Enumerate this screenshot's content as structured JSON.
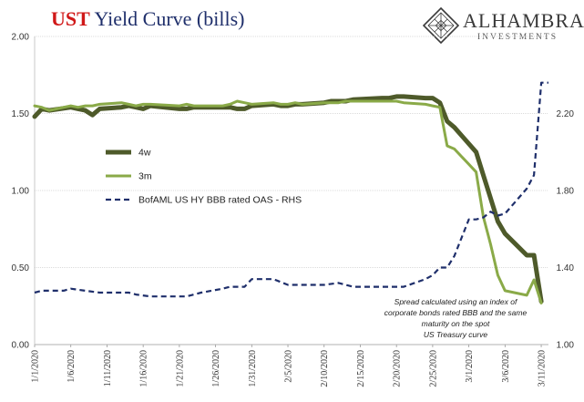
{
  "header": {
    "title_accent": "UST",
    "title_rest": " Yield Curve (bills)"
  },
  "logo": {
    "brand": "ALHAMBRA",
    "sub": "INVESTMENTS"
  },
  "chart_data": {
    "type": "line",
    "title": "UST Yield Curve (bills)",
    "x": [
      "2020-01-01",
      "2020-01-06",
      "2020-01-11",
      "2020-01-16",
      "2020-01-21",
      "2020-01-26",
      "2020-01-31",
      "2020-02-05",
      "2020-02-10",
      "2020-02-15",
      "2020-02-20",
      "2020-02-25",
      "2020-03-01",
      "2020-03-06",
      "2020-03-11"
    ],
    "xtick_labels": [
      "1/1/2020",
      "1/6/2020",
      "1/11/2020",
      "1/16/2020",
      "1/21/2020",
      "1/26/2020",
      "1/31/2020",
      "2/5/2020",
      "2/10/2020",
      "2/15/2020",
      "2/20/2020",
      "2/25/2020",
      "3/1/2020",
      "3/6/2020",
      "3/11/2020"
    ],
    "x_range": [
      "2020-01-01",
      "2020-03-12"
    ],
    "y_left": {
      "range": [
        0,
        2.0
      ],
      "ticks": [
        "0.00",
        "0.50",
        "1.00",
        "1.50",
        "2.00"
      ]
    },
    "y_right": {
      "range": [
        1.0,
        2.6
      ],
      "ticks": [
        "1.00",
        "1.40",
        "1.80",
        "2.20"
      ]
    },
    "grid": true,
    "legend_placement": "center-left",
    "series": [
      {
        "name": "4w",
        "axis": "left",
        "color": "#4e5a2a",
        "dash": "solid",
        "x": [
          "2019-12-31",
          "2020-01-02",
          "2020-01-03",
          "2020-01-06",
          "2020-01-07",
          "2020-01-08",
          "2020-01-09",
          "2020-01-10",
          "2020-01-13",
          "2020-01-14",
          "2020-01-15",
          "2020-01-16",
          "2020-01-17",
          "2020-01-21",
          "2020-01-22",
          "2020-01-23",
          "2020-01-24",
          "2020-01-27",
          "2020-01-28",
          "2020-01-29",
          "2020-01-30",
          "2020-01-31",
          "2020-02-03",
          "2020-02-04",
          "2020-02-05",
          "2020-02-06",
          "2020-02-07",
          "2020-02-10",
          "2020-02-11",
          "2020-02-12",
          "2020-02-13",
          "2020-02-14",
          "2020-02-18",
          "2020-02-19",
          "2020-02-20",
          "2020-02-21",
          "2020-02-24",
          "2020-02-25",
          "2020-02-26",
          "2020-02-27",
          "2020-02-28",
          "2020-03-02",
          "2020-03-03",
          "2020-03-04",
          "2020-03-05",
          "2020-03-06",
          "2020-03-09",
          "2020-03-10",
          "2020-03-11"
        ],
        "y": [
          1.48,
          1.53,
          1.52,
          1.54,
          1.53,
          1.52,
          1.49,
          1.53,
          1.54,
          1.55,
          1.54,
          1.53,
          1.55,
          1.53,
          1.53,
          1.54,
          1.54,
          1.54,
          1.54,
          1.53,
          1.53,
          1.55,
          1.56,
          1.55,
          1.55,
          1.56,
          1.56,
          1.57,
          1.58,
          1.58,
          1.58,
          1.59,
          1.6,
          1.6,
          1.61,
          1.61,
          1.6,
          1.6,
          1.57,
          1.45,
          1.41,
          1.25,
          1.1,
          0.95,
          0.8,
          0.72,
          0.58,
          0.58,
          0.28
        ]
      },
      {
        "name": "3m",
        "axis": "left",
        "color": "#8aaa48",
        "dash": "solid",
        "x": [
          "2019-12-31",
          "2020-01-02",
          "2020-01-03",
          "2020-01-06",
          "2020-01-07",
          "2020-01-08",
          "2020-01-09",
          "2020-01-10",
          "2020-01-13",
          "2020-01-14",
          "2020-01-15",
          "2020-01-16",
          "2020-01-17",
          "2020-01-21",
          "2020-01-22",
          "2020-01-23",
          "2020-01-24",
          "2020-01-27",
          "2020-01-28",
          "2020-01-29",
          "2020-01-30",
          "2020-01-31",
          "2020-02-03",
          "2020-02-04",
          "2020-02-05",
          "2020-02-06",
          "2020-02-07",
          "2020-02-10",
          "2020-02-11",
          "2020-02-12",
          "2020-02-13",
          "2020-02-14",
          "2020-02-18",
          "2020-02-19",
          "2020-02-20",
          "2020-02-21",
          "2020-02-24",
          "2020-02-25",
          "2020-02-26",
          "2020-02-27",
          "2020-02-28",
          "2020-03-02",
          "2020-03-03",
          "2020-03-04",
          "2020-03-05",
          "2020-03-06",
          "2020-03-09",
          "2020-03-10",
          "2020-03-11"
        ],
        "y": [
          1.55,
          1.54,
          1.52,
          1.55,
          1.54,
          1.55,
          1.55,
          1.56,
          1.57,
          1.56,
          1.55,
          1.56,
          1.56,
          1.55,
          1.56,
          1.55,
          1.55,
          1.55,
          1.56,
          1.58,
          1.57,
          1.56,
          1.57,
          1.56,
          1.56,
          1.57,
          1.56,
          1.57,
          1.57,
          1.57,
          1.58,
          1.58,
          1.58,
          1.58,
          1.58,
          1.57,
          1.56,
          1.55,
          1.54,
          1.29,
          1.27,
          1.12,
          0.83,
          0.65,
          0.45,
          0.35,
          0.32,
          0.42,
          0.27
        ]
      },
      {
        "name": "BofAML US HY BBB rated OAS - RHS",
        "axis": "right",
        "color": "#1f2f6b",
        "dash": "dashed",
        "x": [
          "2020-01-01",
          "2020-01-02",
          "2020-01-03",
          "2020-01-05",
          "2020-01-06",
          "2020-01-08",
          "2020-01-10",
          "2020-01-13",
          "2020-01-14",
          "2020-01-15",
          "2020-01-17",
          "2020-01-20",
          "2020-01-22",
          "2020-01-24",
          "2020-01-27",
          "2020-01-28",
          "2020-01-30",
          "2020-01-31",
          "2020-02-01",
          "2020-02-03",
          "2020-02-05",
          "2020-02-07",
          "2020-02-10",
          "2020-02-12",
          "2020-02-14",
          "2020-02-19",
          "2020-02-21",
          "2020-02-24",
          "2020-02-25",
          "2020-02-26",
          "2020-02-27",
          "2020-02-28",
          "2020-03-01",
          "2020-03-02",
          "2020-03-03",
          "2020-03-04",
          "2020-03-05",
          "2020-03-06",
          "2020-03-09",
          "2020-03-10",
          "2020-03-11",
          "2020-03-12"
        ],
        "y": [
          1.27,
          1.28,
          1.28,
          1.28,
          1.29,
          1.28,
          1.27,
          1.27,
          1.27,
          1.26,
          1.25,
          1.25,
          1.25,
          1.27,
          1.29,
          1.3,
          1.3,
          1.34,
          1.34,
          1.34,
          1.31,
          1.31,
          1.31,
          1.32,
          1.3,
          1.3,
          1.3,
          1.34,
          1.36,
          1.4,
          1.4,
          1.46,
          1.65,
          1.65,
          1.66,
          1.69,
          1.67,
          1.68,
          1.81,
          1.88,
          2.36,
          2.36
        ]
      }
    ],
    "annotation": [
      "Spread calculated using an index of",
      "corporate bonds rated BBB and the same",
      "maturity on the spot",
      "US Treasury curve"
    ]
  }
}
